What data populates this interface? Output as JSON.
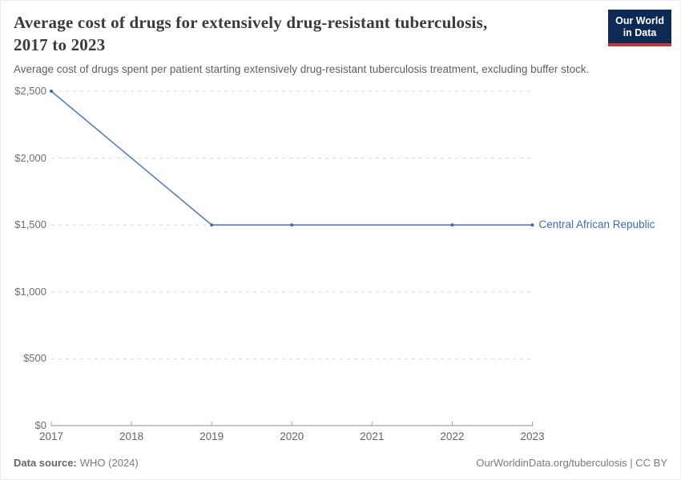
{
  "header": {
    "title_lines": [
      "Average cost of drugs for extensively drug-resistant tuberculosis,",
      "2017 to 2023"
    ],
    "subtitle": "Average cost of drugs spent per patient starting extensively drug-resistant tuberculosis treatment, excluding buffer stock.",
    "logo": {
      "line1": "Our World",
      "line2": "in Data",
      "bg_color": "#0c2a54",
      "accent_color": "#bf3a3f"
    }
  },
  "chart_data": {
    "type": "line",
    "series": [
      {
        "name": "Central African Republic",
        "color": "#5b7cb8",
        "marker_color": "#4a69a8",
        "label_color": "#3d6bb2",
        "x": [
          2017,
          2019,
          2020,
          2022,
          2023
        ],
        "values": [
          2500,
          1500,
          1500,
          1500,
          1500
        ]
      }
    ],
    "xticks": [
      2017,
      2018,
      2019,
      2020,
      2021,
      2022,
      2023
    ],
    "yticks": [
      0,
      500,
      1000,
      1500,
      2000,
      2500
    ],
    "ytick_labels": [
      "$0",
      "$500",
      "$1,000",
      "$1,500",
      "$2,000",
      "$2,500"
    ],
    "xlim": [
      2017,
      2023
    ],
    "ylim": [
      0,
      2500
    ],
    "grid": "horizontal-dashed",
    "legend_position": "right-of-line",
    "colors": {
      "grid": "#d9d9d9",
      "axis": "#a3a3a3"
    }
  },
  "footer": {
    "source_label": "Data source:",
    "source_value": "WHO (2024)",
    "rights": "OurWorldinData.org/tuberculosis | CC BY"
  }
}
